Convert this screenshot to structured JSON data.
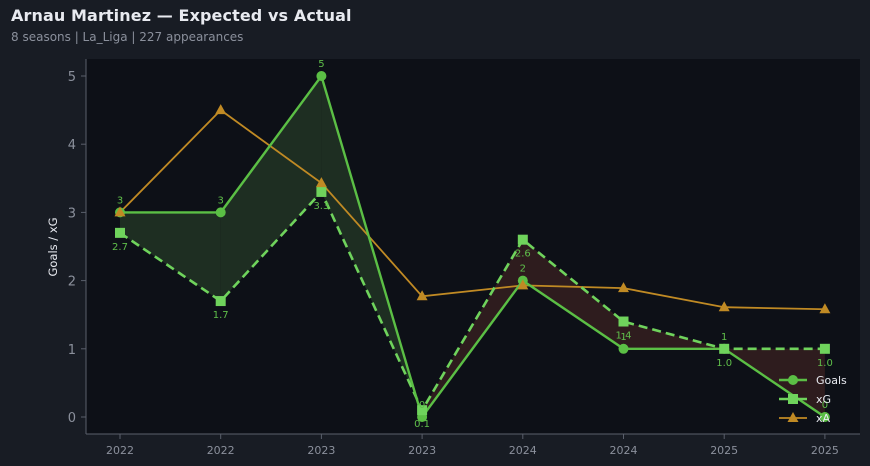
{
  "header": {
    "title": "Arnau Martinez — Expected vs Actual",
    "subtitle": "8 seasons | La_Liga | 227 appearances"
  },
  "colors": {
    "background": "#181c24",
    "plot_background": "#0d1017",
    "goals": "#5bbf45",
    "xg": "#6fd35c",
    "xa": "#c08a24",
    "overperform_fill": "#1e2e22",
    "underperform_fill": "#2e1c1e",
    "axis": "#5a5f6b",
    "tick_text": "#8b909c"
  },
  "chart_data": {
    "type": "line",
    "title": "Arnau Martinez — Expected vs Actual",
    "subtitle": "8 seasons | La_Liga | 227 appearances",
    "xlabel": "",
    "ylabel": "Goals / xG",
    "categories": [
      "2022",
      "2022",
      "2023",
      "2023",
      "2024",
      "2024",
      "2025",
      "2025"
    ],
    "yticks": [
      0,
      1,
      2,
      3,
      4,
      5
    ],
    "ylim": [
      -0.25,
      5.25
    ],
    "grid": false,
    "legend_position": "lower right",
    "series": [
      {
        "name": "Goals",
        "style": "solid",
        "marker": "circle",
        "values": [
          3,
          3,
          5,
          0,
          2,
          1,
          1,
          0
        ],
        "labels": [
          "3",
          "3",
          "5",
          "0",
          "2",
          "1",
          "1",
          "0"
        ]
      },
      {
        "name": "xG",
        "style": "dashed",
        "marker": "square",
        "values": [
          2.7,
          1.7,
          3.3,
          0.1,
          2.6,
          1.4,
          1.0,
          1.0
        ],
        "labels": [
          "2.7",
          "1.7",
          "3.3",
          "0.1",
          "2.6",
          "1.4",
          "1.0",
          "1.0"
        ]
      },
      {
        "name": "xA",
        "style": "solid-thin",
        "marker": "triangle",
        "values": [
          3.0,
          4.5,
          3.43,
          1.77,
          1.93,
          1.89,
          1.61,
          1.58
        ]
      }
    ],
    "fills": [
      {
        "between": [
          "Goals",
          "xG"
        ],
        "where": "Goals >= xG",
        "color": "#1e2e22"
      },
      {
        "between": [
          "Goals",
          "xG"
        ],
        "where": "Goals < xG",
        "color": "#2e1c1e"
      }
    ]
  }
}
